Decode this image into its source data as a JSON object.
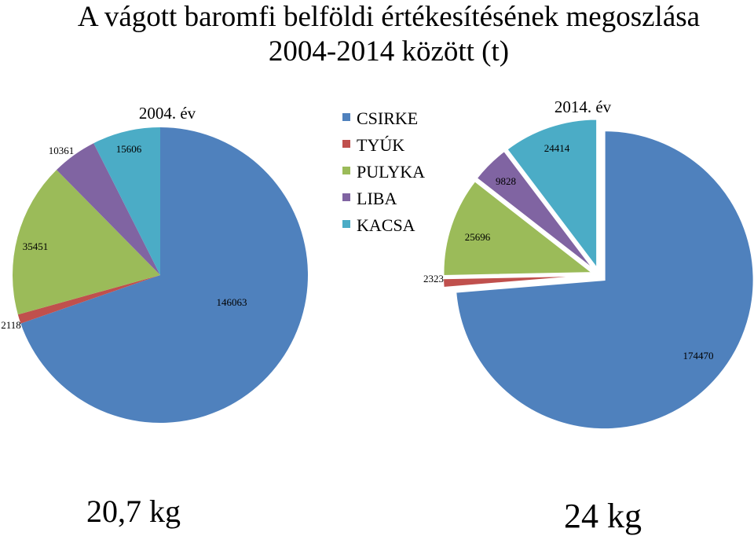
{
  "title_line1": "A vágott baromfi belföldi értékesítésének megoszlása",
  "title_line2": "2004-2014 között (t)",
  "legend": [
    {
      "label": "CSIRKE",
      "color": "#4F81BD"
    },
    {
      "label": "TYÚK",
      "color": "#C0504D"
    },
    {
      "label": "PULYKA",
      "color": "#9BBB59"
    },
    {
      "label": "LIBA",
      "color": "#8064A2"
    },
    {
      "label": "KACSA",
      "color": "#4BACC6"
    }
  ],
  "footer": {
    "left": "20,7 kg",
    "right": "24 kg"
  },
  "chart_data": [
    {
      "type": "pie",
      "title": "2004. év",
      "categories": [
        "CSIRKE",
        "TYÚK",
        "PULYKA",
        "LIBA",
        "KACSA"
      ],
      "values": [
        146063,
        2118,
        35451,
        10361,
        15606
      ],
      "colors": [
        "#4F81BD",
        "#C0504D",
        "#9BBB59",
        "#8064A2",
        "#4BACC6"
      ],
      "data_labels": [
        "146063",
        "2118",
        "35451",
        "10361",
        "15606"
      ],
      "exploded": false
    },
    {
      "type": "pie",
      "title": "2014. év",
      "categories": [
        "CSIRKE",
        "TYÚK",
        "PULYKA",
        "LIBA",
        "KACSA"
      ],
      "values": [
        174470,
        2323,
        25696,
        9828,
        24414
      ],
      "colors": [
        "#4F81BD",
        "#C0504D",
        "#9BBB59",
        "#8064A2",
        "#4BACC6"
      ],
      "data_labels": [
        "174470",
        "2323",
        "25696",
        "9828",
        "24414"
      ],
      "exploded": true
    }
  ]
}
